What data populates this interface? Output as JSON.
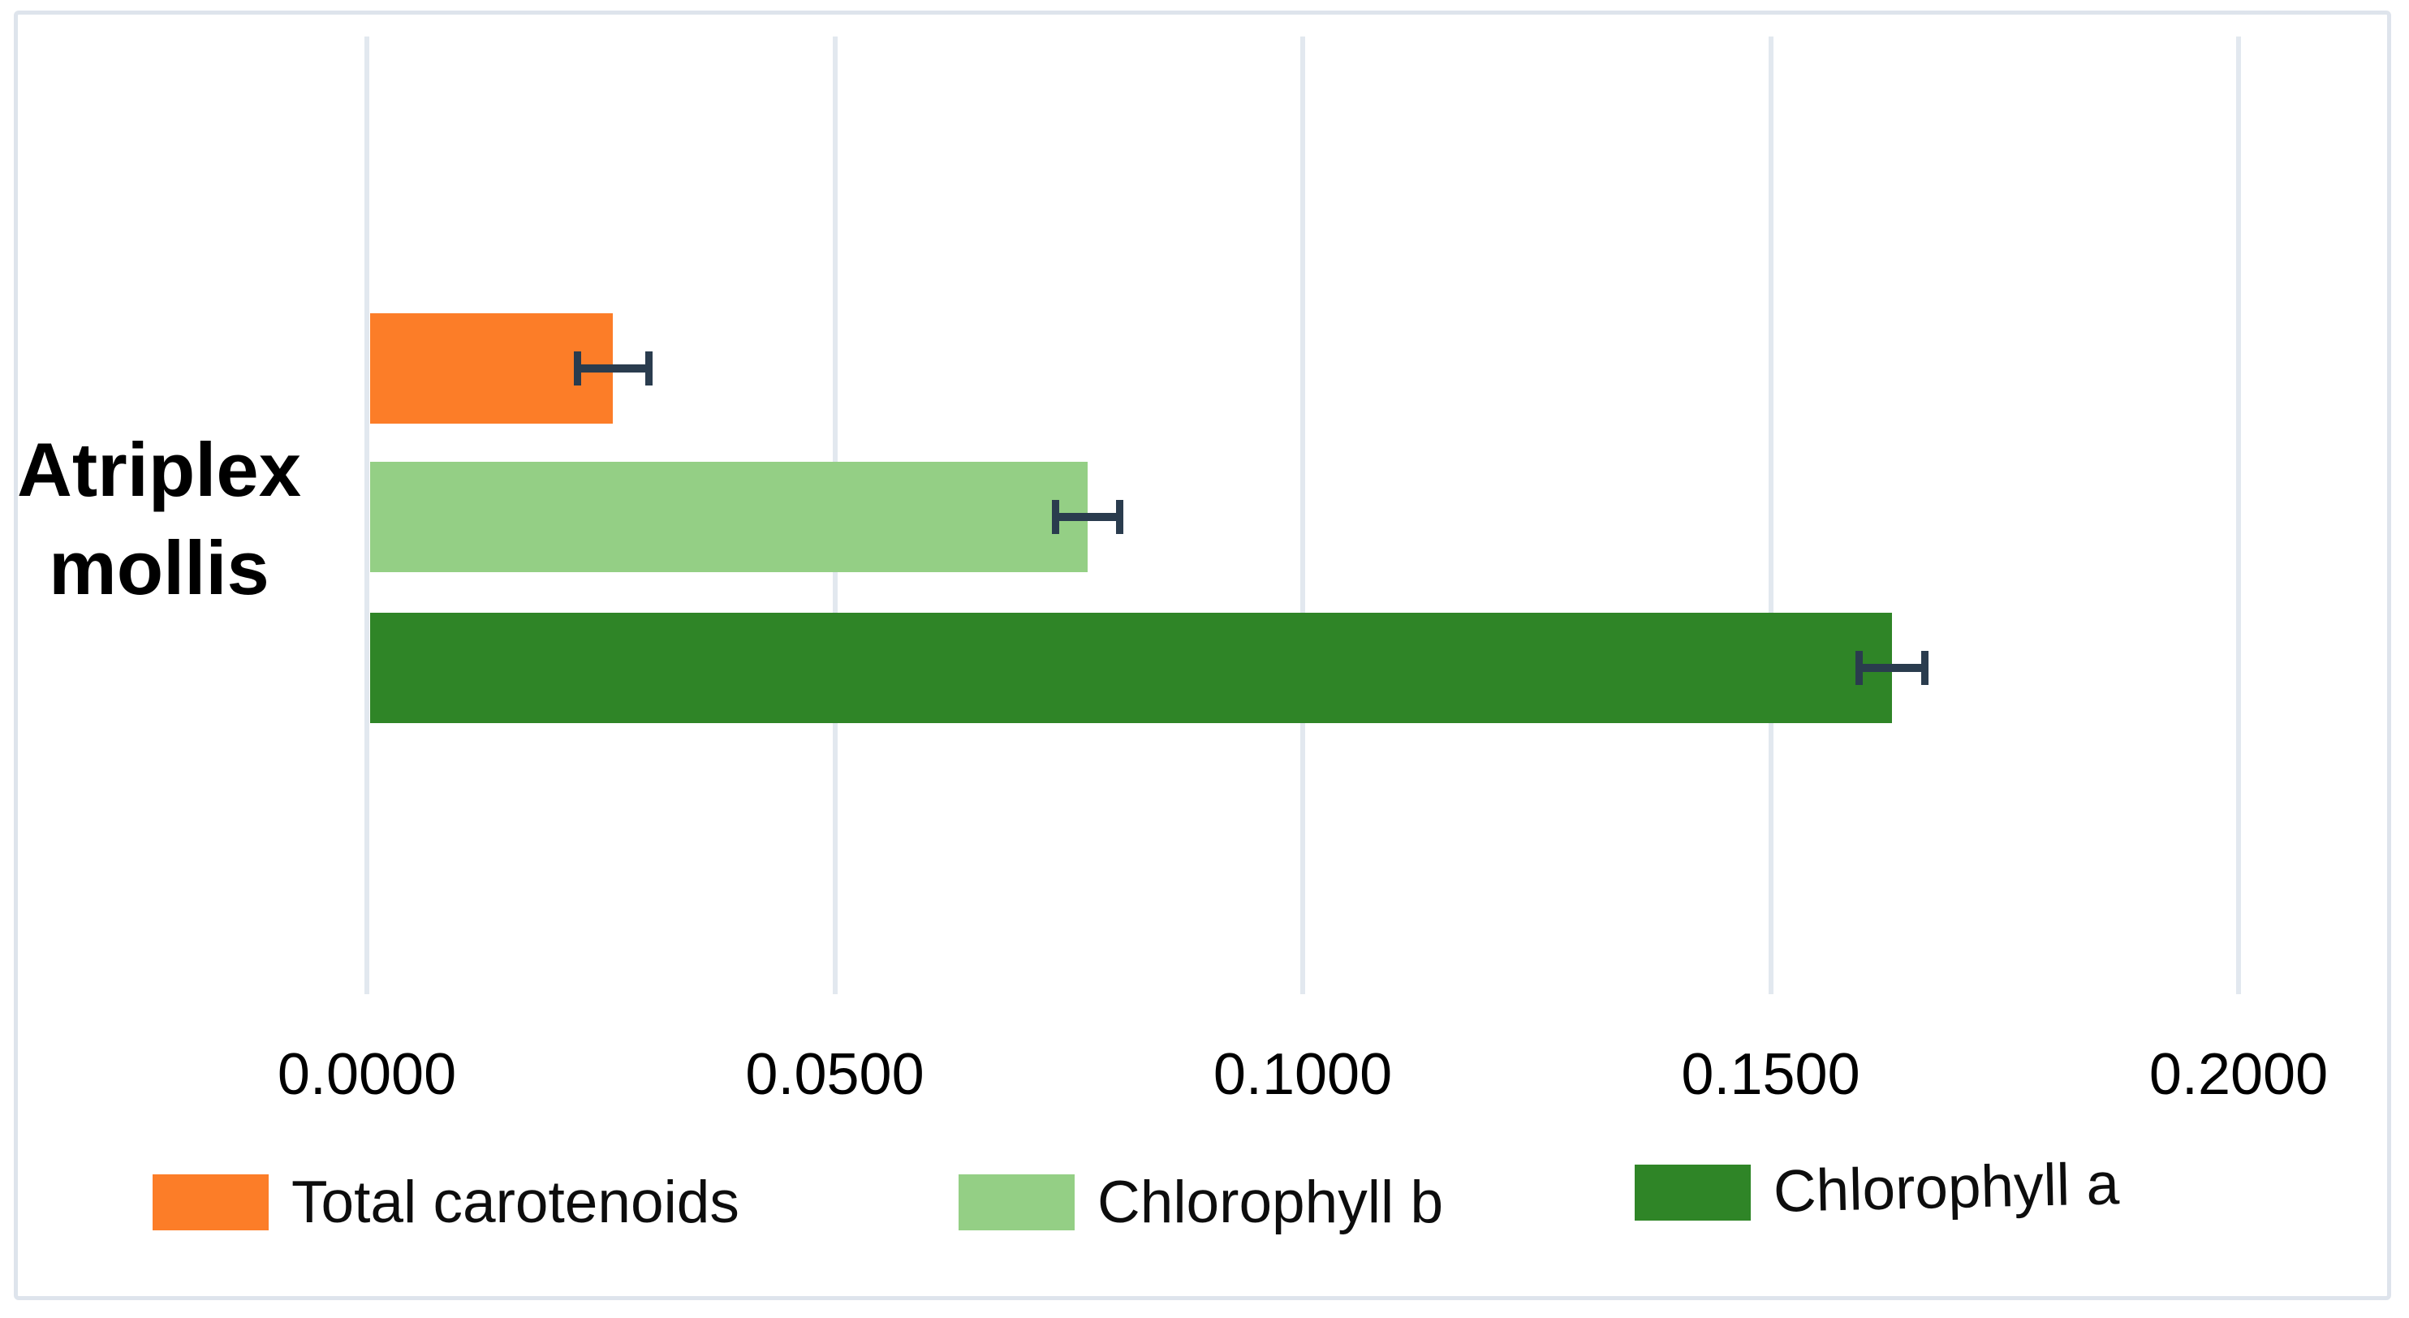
{
  "chart_data": {
    "type": "bar",
    "orientation": "horizontal",
    "title": "",
    "xlabel": "",
    "ylabel": "",
    "categories": [
      "Atriplex mollis"
    ],
    "series": [
      {
        "name": "Total carotenoids",
        "color": "#fc7d28",
        "values": [
          0.0263
        ],
        "error": [
          0.0042
        ]
      },
      {
        "name": "Chlorophyll b",
        "color": "#94cf85",
        "values": [
          0.077
        ],
        "error": [
          0.0038
        ]
      },
      {
        "name": "Chlorophyll a",
        "color": "#2f8527",
        "values": [
          0.163
        ],
        "error": [
          0.0039
        ]
      }
    ],
    "bar_order_top_to_bottom": [
      "Total carotenoids",
      "Chlorophyll b",
      "Chlorophyll a"
    ],
    "x_ticks": [
      {
        "label": "0.0000",
        "value": 0.0
      },
      {
        "label": "0.0500",
        "value": 0.05
      },
      {
        "label": "0.1000",
        "value": 0.1
      },
      {
        "label": "0.1500",
        "value": 0.15
      },
      {
        "label": "0.2000",
        "value": 0.2
      }
    ],
    "xlim": [
      0,
      0.2165
    ],
    "grid": "vertical-only",
    "legend_position": "bottom",
    "colors": {
      "error_bar": "#2a3c4e",
      "gridline": "#e2e8ef",
      "frame_border": "#dee4ec",
      "background": "#ffffff",
      "text": "#000000"
    }
  }
}
